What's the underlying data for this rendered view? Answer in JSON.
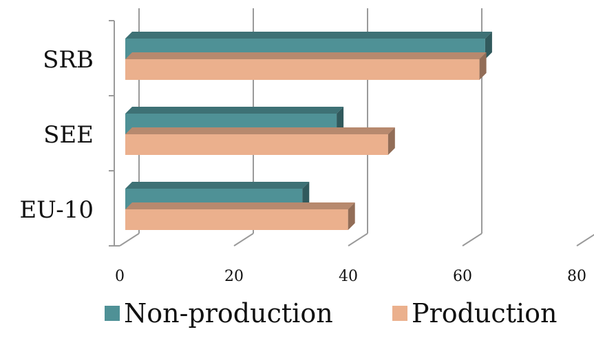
{
  "chart_data": {
    "type": "bar",
    "orientation": "horizontal",
    "style": "3d",
    "categories": [
      "SRB",
      "SEE",
      "EU-10"
    ],
    "series": [
      {
        "name": "Non-production",
        "values": [
          63,
          37,
          31
        ],
        "color": "#4f9196"
      },
      {
        "name": "Production",
        "values": [
          62,
          46,
          39
        ],
        "color": "#ebb08d"
      }
    ],
    "xticks": [
      "0",
      "20",
      "40",
      "60",
      "80"
    ],
    "xlim": [
      0,
      80
    ],
    "grid": true,
    "legend_position": "bottom",
    "title": "",
    "xlabel": "",
    "ylabel": ""
  }
}
